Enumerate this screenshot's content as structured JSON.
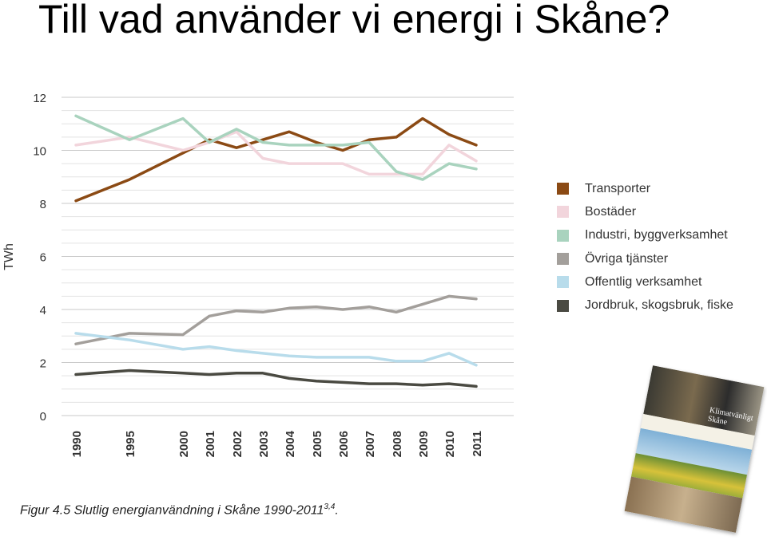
{
  "slide": {
    "title": "Till vad använder vi energi i Skåne?"
  },
  "caption": {
    "text": "Figur 4.5 Slutlig energianvändning i Skåne 1990-2011",
    "superscript": "3,4",
    "suffix": "."
  },
  "cover_image": {
    "title_line1": "Klimatvänligt",
    "title_line2": "Skåne"
  },
  "chart_data": {
    "type": "line",
    "title": "",
    "xlabel": "",
    "ylabel": "TWh",
    "ylim": [
      0,
      12
    ],
    "yticks": [
      0,
      2,
      4,
      6,
      8,
      10,
      12
    ],
    "grid": true,
    "legend_position": "right",
    "categories": [
      "1990",
      "1995",
      "2000",
      "2001",
      "2002",
      "2003",
      "2004",
      "2005",
      "2006",
      "2007",
      "2008",
      "2009",
      "2010",
      "2011"
    ],
    "series": [
      {
        "name": "Transporter",
        "color": "#8B4A14",
        "values": [
          8.1,
          8.9,
          9.9,
          10.4,
          10.1,
          10.4,
          10.7,
          10.3,
          10.0,
          10.4,
          10.5,
          11.2,
          10.6,
          10.2
        ]
      },
      {
        "name": "Bostäder",
        "color": "#F2D5DC",
        "values": [
          10.2,
          10.5,
          10.0,
          10.3,
          10.7,
          9.7,
          9.5,
          9.5,
          9.5,
          9.1,
          9.1,
          9.1,
          10.2,
          9.6
        ]
      },
      {
        "name": "Industri, byggverksamhet",
        "color": "#A9D3BE",
        "values": [
          11.3,
          10.4,
          11.2,
          10.3,
          10.8,
          10.3,
          10.2,
          10.2,
          10.2,
          10.3,
          9.2,
          8.9,
          9.5,
          9.3
        ]
      },
      {
        "name": "Övriga tjänster",
        "color": "#A39F9B",
        "values": [
          2.7,
          3.1,
          3.05,
          3.75,
          3.95,
          3.9,
          4.05,
          4.1,
          4.0,
          4.1,
          3.9,
          4.2,
          4.5,
          4.4
        ]
      },
      {
        "name": "Offentlig verksamhet",
        "color": "#B8DCEB",
        "values": [
          3.1,
          2.85,
          2.5,
          2.6,
          2.45,
          2.35,
          2.25,
          2.2,
          2.2,
          2.2,
          2.05,
          2.05,
          2.35,
          1.9
        ]
      },
      {
        "name": "Jordbruk, skogsbruk, fiske",
        "color": "#4A4A42",
        "values": [
          1.55,
          1.7,
          1.6,
          1.55,
          1.6,
          1.6,
          1.4,
          1.3,
          1.25,
          1.2,
          1.2,
          1.15,
          1.2,
          1.1
        ]
      }
    ]
  }
}
